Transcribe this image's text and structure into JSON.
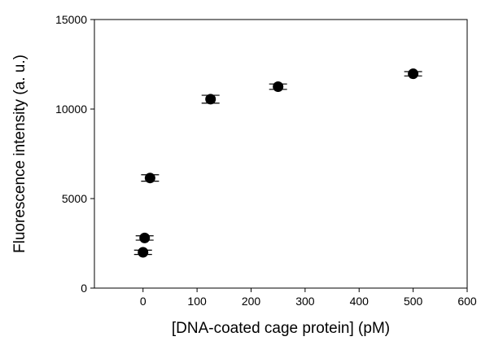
{
  "chart_data": {
    "type": "scatter",
    "xlabel": "[DNA-coated cage protein] (pM)",
    "ylabel": "Fluorescence intensity (a. u.)",
    "xlim": [
      -90,
      600
    ],
    "ylim": [
      0,
      15000
    ],
    "x_ticks": [
      0,
      100,
      200,
      300,
      400,
      500,
      600
    ],
    "y_ticks": [
      0,
      5000,
      10000,
      15000
    ],
    "grid": false,
    "marker_color": "#000000",
    "points": [
      {
        "x": 0,
        "y": 2000,
        "err": 120
      },
      {
        "x": 3,
        "y": 2800,
        "err": 120
      },
      {
        "x": 13,
        "y": 6150,
        "err": 180
      },
      {
        "x": 125,
        "y": 10550,
        "err": 220
      },
      {
        "x": 250,
        "y": 11250,
        "err": 150
      },
      {
        "x": 500,
        "y": 11970,
        "err": 120
      }
    ]
  }
}
